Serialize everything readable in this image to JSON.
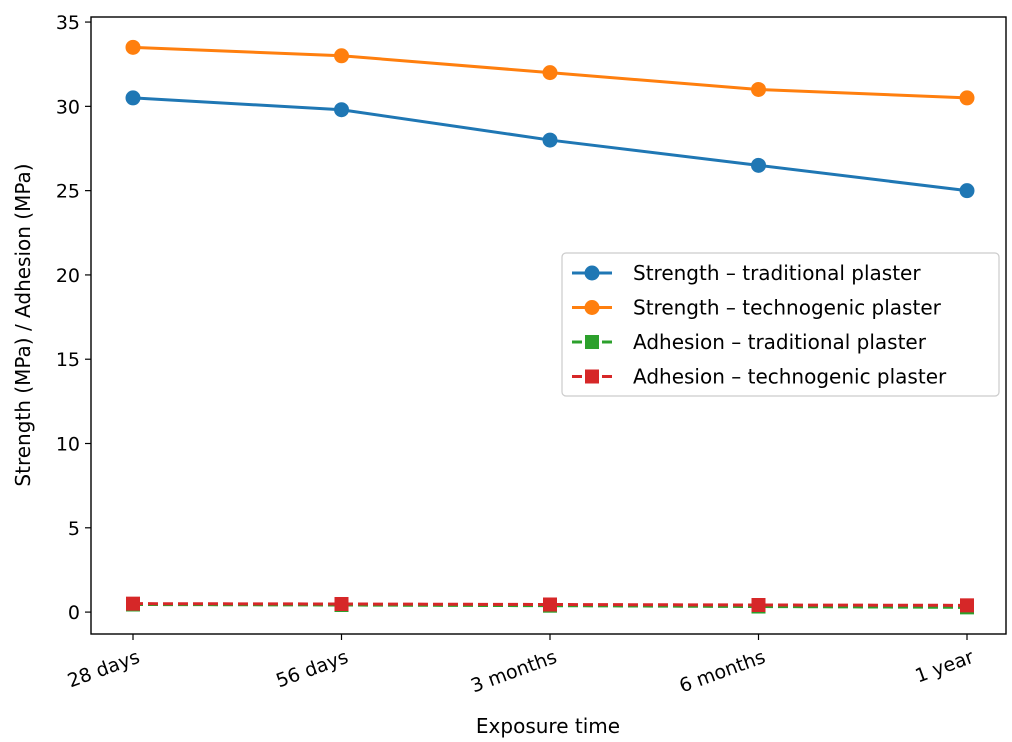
{
  "chart_data": {
    "type": "line",
    "title": "",
    "xlabel": "Exposure time",
    "ylabel": "Strength (MPa) / Adhesion (MPa)",
    "categories": [
      "28 days",
      "56 days",
      "3 months",
      "6 months",
      "1 year"
    ],
    "ylim": [
      -1.3,
      35.3
    ],
    "yticks": [
      0,
      5,
      10,
      15,
      20,
      25,
      30,
      35
    ],
    "grid": false,
    "legend_position": "center-right",
    "series": [
      {
        "name": "Strength – traditional plaster",
        "values": [
          30.5,
          29.8,
          28.0,
          26.5,
          25.0
        ],
        "color": "#1f77b4",
        "marker": "circle",
        "linestyle": "solid"
      },
      {
        "name": "Strength – technogenic plaster",
        "values": [
          33.5,
          33.0,
          32.0,
          31.0,
          30.5
        ],
        "color": "#ff7f0e",
        "marker": "circle",
        "linestyle": "solid"
      },
      {
        "name": "Adhesion – traditional plaster",
        "values": [
          0.45,
          0.42,
          0.38,
          0.33,
          0.28
        ],
        "color": "#2ca02c",
        "marker": "square",
        "linestyle": "dashed"
      },
      {
        "name": "Adhesion – technogenic plaster",
        "values": [
          0.5,
          0.48,
          0.45,
          0.42,
          0.4
        ],
        "color": "#d62728",
        "marker": "square",
        "linestyle": "dashed"
      }
    ]
  }
}
